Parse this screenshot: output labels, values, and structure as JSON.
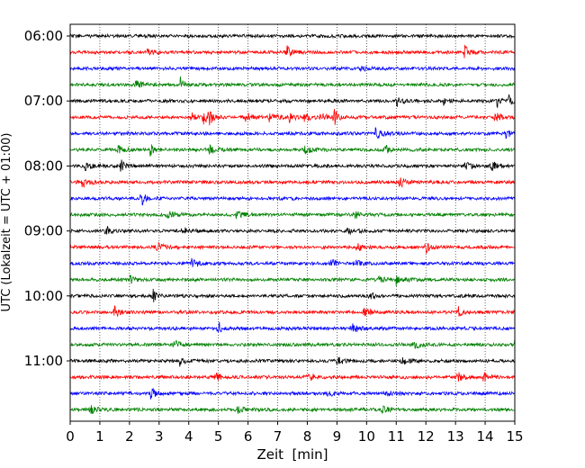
{
  "chart_data": {
    "type": "line",
    "title": "",
    "xlabel": "Zeit  [min]",
    "ylabel": "UTC (Lokalzeit = UTC + 01:00)",
    "xlim": [
      0,
      15
    ],
    "x_ticks": [
      "0",
      "1",
      "2",
      "3",
      "4",
      "5",
      "6",
      "7",
      "8",
      "9",
      "10",
      "11",
      "12",
      "13",
      "14",
      "15"
    ],
    "y_tick_labels": [
      "06:00",
      "07:00",
      "08:00",
      "09:00",
      "10:00",
      "11:00"
    ],
    "grid_x": true,
    "grid_style": "dotted vertical",
    "trace_colors": [
      "#000000",
      "#ff0000",
      "#0000ff",
      "#008000"
    ],
    "series": [
      {
        "start": "06:00",
        "color": "#000000"
      },
      {
        "start": "06:15",
        "color": "#ff0000",
        "events": [
          {
            "t": 7.3,
            "a": 1.2
          },
          {
            "t": 13.3,
            "a": 1.1
          },
          {
            "t": 2.6,
            "a": 0.4
          }
        ]
      },
      {
        "start": "06:30",
        "color": "#0000ff",
        "events": [
          {
            "t": 9.8,
            "a": 0.4
          }
        ]
      },
      {
        "start": "06:45",
        "color": "#008000",
        "events": [
          {
            "t": 2.2,
            "a": 0.6
          },
          {
            "t": 3.7,
            "a": 1.3
          }
        ]
      },
      {
        "start": "07:00",
        "color": "#000000",
        "events": [
          {
            "t": 11.0,
            "a": 0.7
          },
          {
            "t": 14.4,
            "a": 0.9
          },
          {
            "t": 14.8,
            "a": 0.9
          },
          {
            "t": 12.6,
            "a": 0.5
          }
        ]
      },
      {
        "start": "07:15",
        "color": "#ff0000",
        "events": [
          {
            "t": 4.1,
            "a": 0.9
          },
          {
            "t": 4.5,
            "a": 1.2
          },
          {
            "t": 4.7,
            "a": 0.9
          },
          {
            "t": 5.9,
            "a": 0.8
          },
          {
            "t": 6.7,
            "a": 0.7
          },
          {
            "t": 7.4,
            "a": 0.9
          },
          {
            "t": 7.9,
            "a": 0.8
          },
          {
            "t": 8.4,
            "a": 0.7
          },
          {
            "t": 8.9,
            "a": 1.3
          },
          {
            "t": 14.3,
            "a": 0.8
          }
        ]
      },
      {
        "start": "07:30",
        "color": "#0000ff",
        "events": [
          {
            "t": 10.3,
            "a": 0.8
          },
          {
            "t": 14.7,
            "a": 0.6
          }
        ]
      },
      {
        "start": "07:45",
        "color": "#008000",
        "events": [
          {
            "t": 1.6,
            "a": 0.7
          },
          {
            "t": 2.7,
            "a": 0.9
          },
          {
            "t": 4.7,
            "a": 0.7
          },
          {
            "t": 10.6,
            "a": 0.9
          },
          {
            "t": 7.9,
            "a": 0.6
          }
        ]
      },
      {
        "start": "08:00",
        "color": "#000000",
        "events": [
          {
            "t": 1.7,
            "a": 1.3
          },
          {
            "t": 0.5,
            "a": 0.6
          },
          {
            "t": 14.2,
            "a": 0.8
          },
          {
            "t": 13.3,
            "a": 0.6
          }
        ]
      },
      {
        "start": "08:15",
        "color": "#ff0000",
        "events": [
          {
            "t": 0.4,
            "a": 0.8
          },
          {
            "t": 11.1,
            "a": 0.8
          }
        ]
      },
      {
        "start": "08:30",
        "color": "#0000ff",
        "events": [
          {
            "t": 2.4,
            "a": 1.2
          }
        ]
      },
      {
        "start": "08:45",
        "color": "#008000",
        "events": [
          {
            "t": 5.6,
            "a": 0.6
          },
          {
            "t": 3.3,
            "a": 0.6
          },
          {
            "t": 9.6,
            "a": 0.5
          }
        ]
      },
      {
        "start": "09:00",
        "color": "#000000",
        "events": [
          {
            "t": 1.2,
            "a": 0.9
          },
          {
            "t": 3.8,
            "a": 0.5
          },
          {
            "t": 9.3,
            "a": 0.5
          }
        ]
      },
      {
        "start": "09:15",
        "color": "#ff0000",
        "events": [
          {
            "t": 2.9,
            "a": 0.7
          },
          {
            "t": 12.0,
            "a": 0.9
          },
          {
            "t": 9.7,
            "a": 0.5
          }
        ]
      },
      {
        "start": "09:30",
        "color": "#0000ff",
        "events": [
          {
            "t": 8.8,
            "a": 0.9
          },
          {
            "t": 4.1,
            "a": 0.6
          },
          {
            "t": 9.6,
            "a": 0.5
          }
        ]
      },
      {
        "start": "09:45",
        "color": "#008000",
        "events": [
          {
            "t": 2.0,
            "a": 0.9
          },
          {
            "t": 11.0,
            "a": 0.8
          },
          {
            "t": 10.4,
            "a": 0.5
          }
        ]
      },
      {
        "start": "10:00",
        "color": "#000000",
        "events": [
          {
            "t": 2.8,
            "a": 0.9
          },
          {
            "t": 10.1,
            "a": 0.9
          }
        ]
      },
      {
        "start": "10:15",
        "color": "#ff0000",
        "events": [
          {
            "t": 1.5,
            "a": 1.0
          },
          {
            "t": 9.9,
            "a": 0.8
          },
          {
            "t": 13.1,
            "a": 0.9
          }
        ]
      },
      {
        "start": "10:30",
        "color": "#0000ff",
        "events": [
          {
            "t": 5.0,
            "a": 1.1
          },
          {
            "t": 9.5,
            "a": 0.7
          }
        ]
      },
      {
        "start": "10:45",
        "color": "#008000",
        "events": [
          {
            "t": 3.5,
            "a": 0.6
          },
          {
            "t": 11.6,
            "a": 0.6
          },
          {
            "t": 15.0,
            "a": 1.0
          }
        ]
      },
      {
        "start": "11:00",
        "color": "#000000",
        "events": [
          {
            "t": 3.7,
            "a": 0.7
          },
          {
            "t": 9.0,
            "a": 0.7
          },
          {
            "t": 11.2,
            "a": 0.5
          }
        ]
      },
      {
        "start": "11:15",
        "color": "#ff0000",
        "events": [
          {
            "t": 4.9,
            "a": 0.9
          },
          {
            "t": 8.0,
            "a": 0.7
          },
          {
            "t": 13.1,
            "a": 0.8
          },
          {
            "t": 13.9,
            "a": 0.8
          }
        ]
      },
      {
        "start": "11:30",
        "color": "#0000ff",
        "events": [
          {
            "t": 2.7,
            "a": 0.8
          },
          {
            "t": 8.7,
            "a": 0.6
          },
          {
            "t": 10.6,
            "a": 0.6
          }
        ]
      },
      {
        "start": "11:45",
        "color": "#008000",
        "events": [
          {
            "t": 0.7,
            "a": 0.6
          },
          {
            "t": 5.6,
            "a": 0.7
          },
          {
            "t": 10.5,
            "a": 0.5
          }
        ]
      }
    ]
  }
}
